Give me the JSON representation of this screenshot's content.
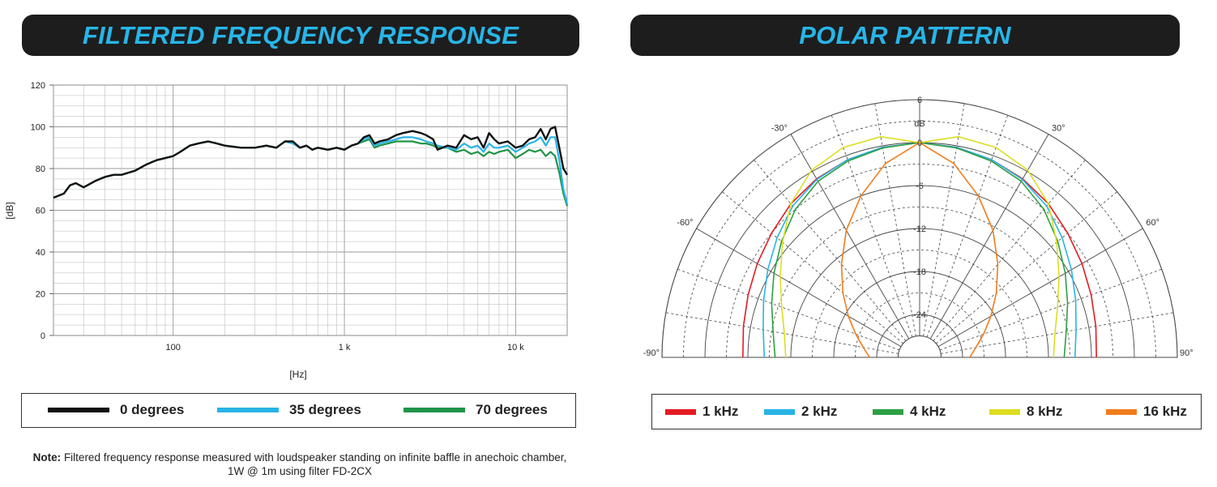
{
  "left_panel": {
    "title": "FILTERED FREQUENCY RESPONSE"
  },
  "right_panel": {
    "title": "POLAR PATTERN"
  },
  "note": {
    "label": "Note:",
    "text": "Filtered frequency response measured with loudspeaker standing on infinite baffle in anechoic chamber, 1W @ 1m using filter FD-2CX"
  },
  "chart_data": [
    {
      "type": "line",
      "title": "FILTERED FREQUENCY RESPONSE",
      "xlabel": "[Hz]",
      "ylabel": "[dB]",
      "xscale": "log",
      "xlim": [
        20,
        20000
      ],
      "ylim": [
        0,
        120
      ],
      "xticks": [
        {
          "v": 100,
          "label": "100"
        },
        {
          "v": 1000,
          "label": "1 k"
        },
        {
          "v": 10000,
          "label": "10 k"
        }
      ],
      "yticks": [
        0,
        20,
        40,
        60,
        80,
        100,
        120
      ],
      "grid": true,
      "legend_position": "bottom",
      "series": [
        {
          "name": "0 degrees",
          "color": "#111111",
          "points": [
            [
              20,
              66
            ],
            [
              23,
              68
            ],
            [
              25,
              72
            ],
            [
              27,
              73
            ],
            [
              30,
              71
            ],
            [
              35,
              74
            ],
            [
              40,
              76
            ],
            [
              45,
              77
            ],
            [
              50,
              77
            ],
            [
              60,
              79
            ],
            [
              70,
              82
            ],
            [
              80,
              84
            ],
            [
              90,
              85
            ],
            [
              100,
              86
            ],
            [
              110,
              88
            ],
            [
              125,
              91
            ],
            [
              140,
              92
            ],
            [
              160,
              93
            ],
            [
              180,
              92
            ],
            [
              200,
              91
            ],
            [
              250,
              90
            ],
            [
              300,
              90
            ],
            [
              350,
              91
            ],
            [
              400,
              90
            ],
            [
              450,
              93
            ],
            [
              500,
              93
            ],
            [
              550,
              90
            ],
            [
              600,
              91
            ],
            [
              650,
              89
            ],
            [
              700,
              90
            ],
            [
              800,
              89
            ],
            [
              900,
              90
            ],
            [
              1000,
              89
            ],
            [
              1100,
              91
            ],
            [
              1200,
              92
            ],
            [
              1300,
              95
            ],
            [
              1400,
              96
            ],
            [
              1500,
              92
            ],
            [
              1600,
              93
            ],
            [
              1800,
              94
            ],
            [
              2000,
              96
            ],
            [
              2200,
              97
            ],
            [
              2500,
              98
            ],
            [
              2800,
              97
            ],
            [
              3000,
              96
            ],
            [
              3300,
              94
            ],
            [
              3500,
              89
            ],
            [
              4000,
              91
            ],
            [
              4500,
              90
            ],
            [
              5000,
              96
            ],
            [
              5500,
              94
            ],
            [
              6000,
              95
            ],
            [
              6500,
              90
            ],
            [
              7000,
              97
            ],
            [
              7500,
              94
            ],
            [
              8000,
              92
            ],
            [
              9000,
              93
            ],
            [
              10000,
              90
            ],
            [
              11000,
              91
            ],
            [
              12000,
              94
            ],
            [
              13000,
              95
            ],
            [
              14000,
              99
            ],
            [
              15000,
              94
            ],
            [
              16000,
              99
            ],
            [
              17000,
              100
            ],
            [
              18000,
              90
            ],
            [
              19000,
              80
            ],
            [
              20000,
              77
            ]
          ]
        },
        {
          "name": "35 degrees",
          "color": "#29b3e6",
          "points": [
            [
              20,
              66
            ],
            [
              23,
              68
            ],
            [
              25,
              72
            ],
            [
              27,
              73
            ],
            [
              30,
              71
            ],
            [
              35,
              74
            ],
            [
              40,
              76
            ],
            [
              45,
              77
            ],
            [
              50,
              77
            ],
            [
              60,
              79
            ],
            [
              70,
              82
            ],
            [
              80,
              84
            ],
            [
              90,
              85
            ],
            [
              100,
              86
            ],
            [
              110,
              88
            ],
            [
              125,
              91
            ],
            [
              140,
              92
            ],
            [
              160,
              93
            ],
            [
              180,
              92
            ],
            [
              200,
              91
            ],
            [
              250,
              90
            ],
            [
              300,
              90
            ],
            [
              350,
              91
            ],
            [
              400,
              90
            ],
            [
              450,
              93
            ],
            [
              500,
              92
            ],
            [
              550,
              90
            ],
            [
              600,
              91
            ],
            [
              650,
              89
            ],
            [
              700,
              90
            ],
            [
              800,
              89
            ],
            [
              900,
              90
            ],
            [
              1000,
              89
            ],
            [
              1100,
              91
            ],
            [
              1200,
              92
            ],
            [
              1300,
              94
            ],
            [
              1400,
              95
            ],
            [
              1500,
              91
            ],
            [
              1600,
              92
            ],
            [
              1800,
              93
            ],
            [
              2000,
              94
            ],
            [
              2200,
              95
            ],
            [
              2500,
              95
            ],
            [
              2800,
              94
            ],
            [
              3000,
              93
            ],
            [
              3300,
              92
            ],
            [
              3500,
              91
            ],
            [
              4000,
              90
            ],
            [
              4500,
              89
            ],
            [
              5000,
              92
            ],
            [
              5500,
              90
            ],
            [
              6000,
              91
            ],
            [
              6500,
              88
            ],
            [
              7000,
              92
            ],
            [
              7500,
              90
            ],
            [
              8000,
              90
            ],
            [
              9000,
              91
            ],
            [
              10000,
              88
            ],
            [
              11000,
              90
            ],
            [
              12000,
              92
            ],
            [
              13000,
              93
            ],
            [
              14000,
              95
            ],
            [
              15000,
              91
            ],
            [
              16000,
              95
            ],
            [
              17000,
              95
            ],
            [
              18000,
              84
            ],
            [
              19000,
              70
            ],
            [
              20000,
              63
            ]
          ]
        },
        {
          "name": "70 degrees",
          "color": "#1f9447",
          "points": [
            [
              20,
              66
            ],
            [
              23,
              68
            ],
            [
              25,
              72
            ],
            [
              27,
              73
            ],
            [
              30,
              71
            ],
            [
              35,
              74
            ],
            [
              40,
              76
            ],
            [
              45,
              77
            ],
            [
              50,
              77
            ],
            [
              60,
              79
            ],
            [
              70,
              82
            ],
            [
              80,
              84
            ],
            [
              90,
              85
            ],
            [
              100,
              86
            ],
            [
              110,
              88
            ],
            [
              125,
              91
            ],
            [
              140,
              92
            ],
            [
              160,
              93
            ],
            [
              180,
              92
            ],
            [
              200,
              91
            ],
            [
              250,
              90
            ],
            [
              300,
              90
            ],
            [
              350,
              91
            ],
            [
              400,
              90
            ],
            [
              450,
              93
            ],
            [
              500,
              92
            ],
            [
              550,
              90
            ],
            [
              600,
              91
            ],
            [
              650,
              89
            ],
            [
              700,
              90
            ],
            [
              800,
              89
            ],
            [
              900,
              90
            ],
            [
              1000,
              89
            ],
            [
              1100,
              91
            ],
            [
              1200,
              92
            ],
            [
              1300,
              93
            ],
            [
              1400,
              94
            ],
            [
              1500,
              90
            ],
            [
              1600,
              91
            ],
            [
              1800,
              92
            ],
            [
              2000,
              93
            ],
            [
              2200,
              93
            ],
            [
              2500,
              93
            ],
            [
              2800,
              92
            ],
            [
              3000,
              92
            ],
            [
              3300,
              91
            ],
            [
              3500,
              90
            ],
            [
              4000,
              90
            ],
            [
              4500,
              88
            ],
            [
              5000,
              89
            ],
            [
              5500,
              87
            ],
            [
              6000,
              88
            ],
            [
              6500,
              86
            ],
            [
              7000,
              88
            ],
            [
              7500,
              87
            ],
            [
              8000,
              88
            ],
            [
              9000,
              89
            ],
            [
              10000,
              85
            ],
            [
              11000,
              87
            ],
            [
              12000,
              89
            ],
            [
              13000,
              88
            ],
            [
              14000,
              89
            ],
            [
              15000,
              86
            ],
            [
              16000,
              88
            ],
            [
              17000,
              86
            ],
            [
              18000,
              78
            ],
            [
              19000,
              68
            ],
            [
              20000,
              62
            ]
          ]
        }
      ]
    },
    {
      "type": "polar",
      "title": "POLAR PATTERN",
      "unit": "dB",
      "rlim": [
        -30,
        6
      ],
      "ring_labels": [
        "6",
        "0",
        "-6",
        "-12",
        "-18",
        "-24"
      ],
      "angle_labels": [
        "-90°",
        "-60°",
        "-30°",
        "30°",
        "60°",
        "90°"
      ],
      "grid": true,
      "legend_position": "bottom",
      "series": [
        {
          "name": "1 kHz",
          "color": "#e31b23",
          "points": [
            [
              0,
              0
            ],
            [
              10,
              -0.2
            ],
            [
              20,
              -0.6
            ],
            [
              30,
              -1.2
            ],
            [
              40,
              -2
            ],
            [
              50,
              -3
            ],
            [
              60,
              -3.8
            ],
            [
              70,
              -4.5
            ],
            [
              80,
              -5
            ],
            [
              90,
              -5.3
            ]
          ]
        },
        {
          "name": "2 kHz",
          "color": "#29b3e6",
          "points": [
            [
              0,
              0
            ],
            [
              10,
              -0.2
            ],
            [
              20,
              -0.6
            ],
            [
              30,
              -1.3
            ],
            [
              40,
              -2.4
            ],
            [
              50,
              -4
            ],
            [
              60,
              -5.5
            ],
            [
              70,
              -6.8
            ],
            [
              80,
              -7.8
            ],
            [
              90,
              -8.3
            ]
          ]
        },
        {
          "name": "4 kHz",
          "color": "#2ea043",
          "points": [
            [
              0,
              0
            ],
            [
              10,
              -0.3
            ],
            [
              20,
              -0.8
            ],
            [
              30,
              -1.6
            ],
            [
              40,
              -3
            ],
            [
              50,
              -4.8
            ],
            [
              60,
              -6.5
            ],
            [
              70,
              -8
            ],
            [
              80,
              -9.2
            ],
            [
              90,
              -9.8
            ]
          ]
        },
        {
          "name": "8 kHz",
          "color": "#dddd22",
          "points": [
            [
              0,
              0
            ],
            [
              10,
              1.3
            ],
            [
              20,
              1.2
            ],
            [
              30,
              0.2
            ],
            [
              40,
              -2
            ],
            [
              50,
              -5
            ],
            [
              60,
              -7.5
            ],
            [
              70,
              -9.5
            ],
            [
              80,
              -10.8
            ],
            [
              90,
              -11.3
            ]
          ]
        },
        {
          "name": "16 kHz",
          "color": "#f07c1b",
          "points": [
            [
              0,
              0
            ],
            [
              10,
              -2.5
            ],
            [
              20,
              -6
            ],
            [
              30,
              -9.5
            ],
            [
              40,
              -13
            ],
            [
              50,
              -16
            ],
            [
              60,
              -18.5
            ],
            [
              70,
              -20.5
            ],
            [
              80,
              -22
            ],
            [
              90,
              -23
            ]
          ]
        }
      ]
    }
  ]
}
